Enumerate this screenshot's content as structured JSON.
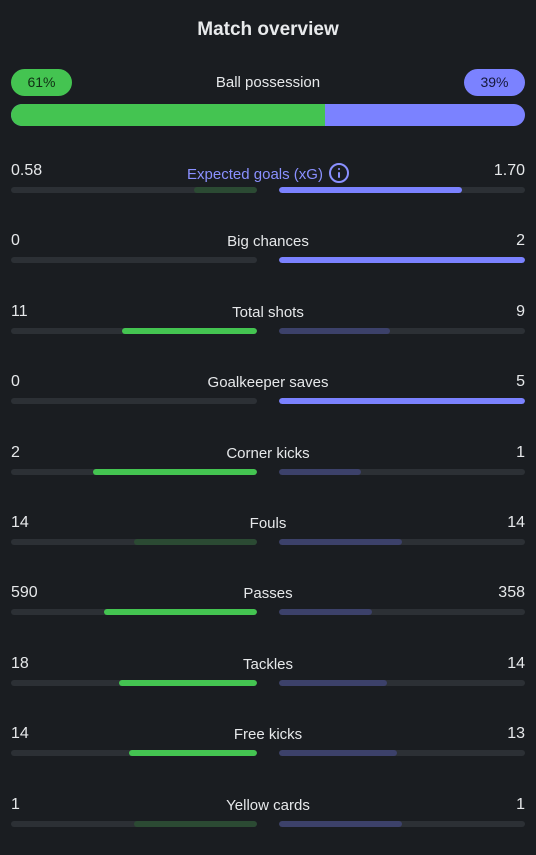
{
  "title": "Match overview",
  "possession": {
    "label": "Ball possession",
    "home": "61%",
    "away": "39%",
    "home_value": 61,
    "away_value": 39
  },
  "colors": {
    "home": "#44c451",
    "away": "#7b82ff",
    "home_dim": "#2b4a33",
    "away_dim": "#3c416a",
    "track": "#2c3035",
    "background": "#1a1d21"
  },
  "stats": [
    {
      "label": "Expected goals (xG)",
      "home": "0.58",
      "away": "1.70",
      "home_value": 0.58,
      "away_value": 1.7,
      "icon": "info-icon"
    },
    {
      "label": "Big chances",
      "home": "0",
      "away": "2",
      "home_value": 0,
      "away_value": 2
    },
    {
      "label": "Total shots",
      "home": "11",
      "away": "9",
      "home_value": 11,
      "away_value": 9
    },
    {
      "label": "Goalkeeper saves",
      "home": "0",
      "away": "5",
      "home_value": 0,
      "away_value": 5
    },
    {
      "label": "Corner kicks",
      "home": "2",
      "away": "1",
      "home_value": 2,
      "away_value": 1
    },
    {
      "label": "Fouls",
      "home": "14",
      "away": "14",
      "home_value": 14,
      "away_value": 14
    },
    {
      "label": "Passes",
      "home": "590",
      "away": "358",
      "home_value": 590,
      "away_value": 358
    },
    {
      "label": "Tackles",
      "home": "18",
      "away": "14",
      "home_value": 18,
      "away_value": 14
    },
    {
      "label": "Free kicks",
      "home": "14",
      "away": "13",
      "home_value": 14,
      "away_value": 13
    },
    {
      "label": "Yellow cards",
      "home": "1",
      "away": "1",
      "home_value": 1,
      "away_value": 1
    }
  ]
}
